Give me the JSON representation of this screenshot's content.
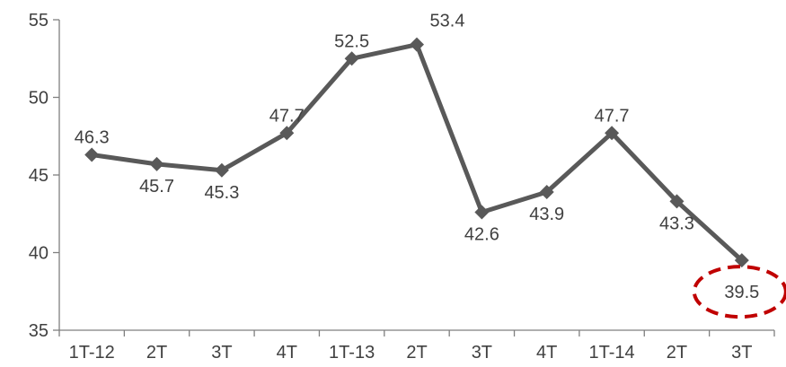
{
  "chart_data": {
    "type": "line",
    "categories": [
      "1T-12",
      "2T",
      "3T",
      "4T",
      "1T-13",
      "2T",
      "3T",
      "4T",
      "1T-14",
      "2T",
      "3T"
    ],
    "series": [
      {
        "values": [
          46.3,
          45.7,
          45.3,
          47.7,
          52.5,
          53.4,
          42.6,
          43.9,
          47.7,
          43.3,
          39.5
        ],
        "labels": [
          "46.3",
          "45.7",
          "45.3",
          "47.7",
          "52.5",
          "53.4",
          "42.6",
          "43.9",
          "47.7",
          "43.3",
          "39.5"
        ],
        "color": "#595959"
      }
    ],
    "yticks": [
      "35",
      "40",
      "45",
      "50",
      "55"
    ],
    "ylim": [
      35,
      55
    ],
    "highlight_index": 10,
    "highlight_color": "#c00000",
    "grid": false,
    "legend": "none"
  }
}
